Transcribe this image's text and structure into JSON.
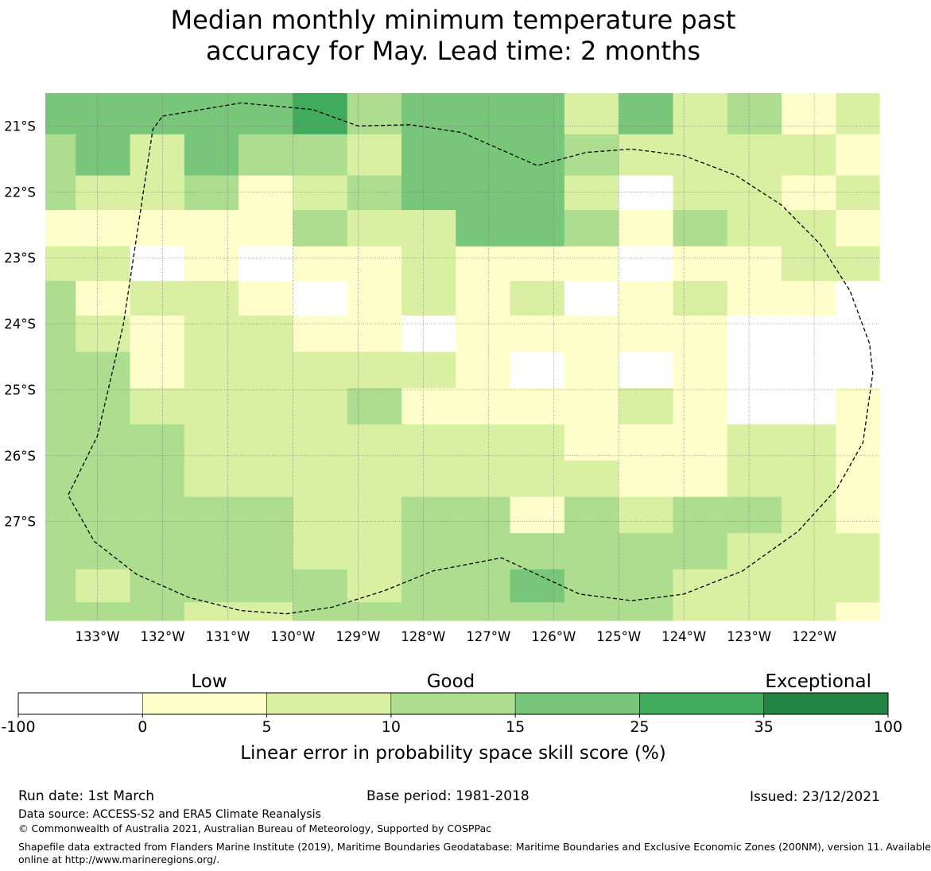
{
  "title": {
    "line1": "Median monthly minimum temperature past",
    "line2": "accuracy for May. Lead time: 2 months"
  },
  "chart_data": {
    "type": "heatmap",
    "title": "Median monthly minimum temperature past accuracy for May. Lead time: 2 months",
    "x_labels": [
      "133°W",
      "132°W",
      "131°W",
      "130°W",
      "129°W",
      "128°W",
      "127°W",
      "126°W",
      "125°W",
      "124°W",
      "123°W",
      "122°W"
    ],
    "y_labels": [
      "21°S",
      "22°S",
      "23°S",
      "24°S",
      "25°S",
      "26°S",
      "27°S"
    ],
    "x_range": [
      -133.8,
      -121.0
    ],
    "y_range": [
      -28.5,
      -20.5
    ],
    "column_longitudes": [
      -133.75,
      -132.917,
      -132.083,
      -131.25,
      -130.417,
      -129.583,
      -128.75,
      -127.917,
      -127.083,
      -126.25,
      -125.417,
      -124.583,
      -123.75,
      -122.917,
      -122.083,
      -121.25
    ],
    "row_latitudes": [
      -20.75,
      -21.5,
      -22.0,
      -22.55,
      -23.1,
      -23.6,
      -24.15,
      -24.7,
      -25.25,
      -25.8,
      -26.35,
      -26.9,
      -27.45,
      -28.0,
      -28.45
    ],
    "grid_values": [
      [
        20,
        20,
        20,
        20,
        20,
        30,
        12,
        20,
        20,
        20,
        7,
        20,
        7,
        12,
        2,
        7
      ],
      [
        12,
        20,
        7,
        20,
        12,
        12,
        7,
        20,
        20,
        20,
        12,
        7,
        7,
        7,
        7,
        2
      ],
      [
        12,
        7,
        7,
        12,
        2,
        7,
        12,
        20,
        20,
        20,
        7,
        -50,
        7,
        7,
        2,
        7
      ],
      [
        2,
        2,
        2,
        2,
        2,
        12,
        7,
        7,
        20,
        20,
        12,
        2,
        12,
        7,
        7,
        2
      ],
      [
        7,
        7,
        -50,
        2,
        -50,
        2,
        2,
        7,
        2,
        2,
        2,
        -50,
        2,
        2,
        7,
        7
      ],
      [
        12,
        2,
        7,
        7,
        2,
        -50,
        2,
        7,
        2,
        7,
        -50,
        2,
        7,
        2,
        2,
        -50
      ],
      [
        12,
        7,
        2,
        7,
        7,
        2,
        2,
        -50,
        2,
        2,
        2,
        2,
        2,
        -50,
        -50,
        -50
      ],
      [
        12,
        12,
        2,
        7,
        7,
        7,
        7,
        7,
        2,
        -50,
        2,
        -50,
        2,
        -50,
        -50,
        -50
      ],
      [
        12,
        12,
        7,
        7,
        7,
        7,
        12,
        2,
        2,
        2,
        2,
        7,
        2,
        -50,
        -50,
        2
      ],
      [
        12,
        12,
        12,
        7,
        7,
        7,
        7,
        7,
        7,
        7,
        2,
        2,
        2,
        7,
        7,
        2
      ],
      [
        12,
        12,
        12,
        7,
        7,
        7,
        7,
        7,
        7,
        7,
        7,
        2,
        2,
        7,
        7,
        2
      ],
      [
        12,
        12,
        12,
        12,
        12,
        7,
        7,
        12,
        12,
        2,
        12,
        7,
        12,
        12,
        7,
        2
      ],
      [
        12,
        12,
        12,
        12,
        12,
        7,
        7,
        12,
        12,
        12,
        12,
        12,
        12,
        7,
        7,
        7
      ],
      [
        12,
        7,
        12,
        12,
        12,
        12,
        7,
        12,
        12,
        20,
        12,
        12,
        7,
        7,
        7,
        7
      ],
      [
        12,
        12,
        12,
        7,
        7,
        12,
        12,
        12,
        12,
        12,
        12,
        12,
        7,
        7,
        7,
        2
      ]
    ],
    "boundary": [
      [
        -132.0,
        -20.85
      ],
      [
        -130.8,
        -20.65
      ],
      [
        -129.7,
        -20.75
      ],
      [
        -129.0,
        -21.0
      ],
      [
        -128.2,
        -20.98
      ],
      [
        -127.4,
        -21.1
      ],
      [
        -126.25,
        -21.6
      ],
      [
        -125.5,
        -21.4
      ],
      [
        -124.8,
        -21.35
      ],
      [
        -124.0,
        -21.45
      ],
      [
        -123.2,
        -21.75
      ],
      [
        -122.5,
        -22.2
      ],
      [
        -121.9,
        -22.8
      ],
      [
        -121.45,
        -23.5
      ],
      [
        -121.15,
        -24.3
      ],
      [
        -121.1,
        -24.75
      ],
      [
        -121.25,
        -25.8
      ],
      [
        -121.65,
        -26.5
      ],
      [
        -122.25,
        -27.15
      ],
      [
        -123.1,
        -27.75
      ],
      [
        -124.0,
        -28.1
      ],
      [
        -124.8,
        -28.2
      ],
      [
        -125.6,
        -28.1
      ],
      [
        -126.8,
        -27.55
      ],
      [
        -127.85,
        -27.75
      ],
      [
        -128.6,
        -28.05
      ],
      [
        -129.4,
        -28.3
      ],
      [
        -130.1,
        -28.4
      ],
      [
        -130.8,
        -28.35
      ],
      [
        -131.6,
        -28.15
      ],
      [
        -132.4,
        -27.8
      ],
      [
        -133.05,
        -27.3
      ],
      [
        -133.45,
        -26.6
      ],
      [
        -133.0,
        -25.7
      ],
      [
        -132.6,
        -24.0
      ],
      [
        -132.15,
        -21.05
      ],
      [
        -132.0,
        -20.85
      ]
    ],
    "colorbar": {
      "label": "Linear error in probability space skill score (%)",
      "bins": [
        -100,
        0,
        5,
        10,
        15,
        25,
        35,
        100
      ],
      "tick_labels": [
        "-100",
        "0",
        "5",
        "10",
        "15",
        "25",
        "35",
        "100"
      ],
      "colors": [
        "#ffffff",
        "#ffffcc",
        "#d9f0a3",
        "#addd8e",
        "#78c679",
        "#41ab5d",
        "#238443"
      ],
      "category_labels": [
        "Low",
        "Good",
        "Exceptional"
      ]
    }
  },
  "footer": {
    "run_date": "Run date: 1st March",
    "base_period": "Base period: 1981-2018",
    "issued": "Issued: 23/12/2021",
    "data_source": "Data source: ACCESS-S2 and ERA5 Climate Reanalysis",
    "copyright": "© Commonwealth of Australia 2021, Australian Bureau of Meteorology, Supported by COSPPac",
    "shapefile_line1": "Shapefile data extracted from Flanders Marine Institute (2019), Maritime Boundaries Geodatabase: Maritime Boundaries and Exclusive Economic Zones (200NM), version 11. Available",
    "shapefile_line2": "online at http://www.marineregions.org/."
  }
}
